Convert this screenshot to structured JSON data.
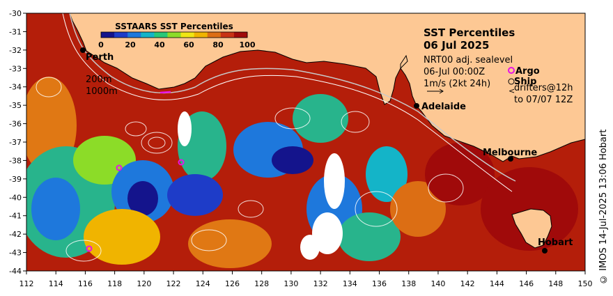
{
  "title": {
    "line1": "SST Percentiles",
    "line2": "06 Jul 2025"
  },
  "info": {
    "sealevel": "NRT00 adj. sealevel",
    "time": "06-Jul 00:00Z",
    "current": "1m/s (2kt 24h)",
    "argo": "Argo",
    "ship": "Ship",
    "drifters1": "drifters@12h",
    "drifters2": "to 07/07 12Z"
  },
  "colorbar": {
    "title": "SSTAARS SST Percentiles",
    "ticks": [
      "0",
      "20",
      "40",
      "60",
      "80",
      "100"
    ],
    "colors": [
      "#14148c",
      "#1e3cc8",
      "#1e78dc",
      "#14b4c8",
      "#28c878",
      "#8cdc28",
      "#f0e614",
      "#f0b400",
      "#dc6e14",
      "#c83214",
      "#a00a0a"
    ]
  },
  "depth_labels": [
    "200m",
    "1000m"
  ],
  "cities": [
    "Perth",
    "Adelaide",
    "Melbourne",
    "Hobart"
  ],
  "axes": {
    "x_ticks": [
      "112",
      "114",
      "116",
      "118",
      "120",
      "122",
      "124",
      "126",
      "128",
      "130",
      "132",
      "134",
      "136",
      "138",
      "140",
      "142",
      "144",
      "146",
      "148",
      "150"
    ],
    "y_ticks": [
      "-30",
      "-31",
      "-32",
      "-33",
      "-34",
      "-35",
      "-36",
      "-37",
      "-38",
      "-39",
      "-40",
      "-41",
      "-42",
      "-43",
      "-44"
    ]
  },
  "credit": "© IMOS 14-Jul-2025 13:06 Hobart",
  "colors": {
    "land": "#fdc894",
    "ocean_warm": "#b41e0a",
    "ocean_mid": "#e07814",
    "ocean_cool": "#28b48c",
    "ocean_cold": "#1e3cb4",
    "argo": "#e614e6"
  }
}
